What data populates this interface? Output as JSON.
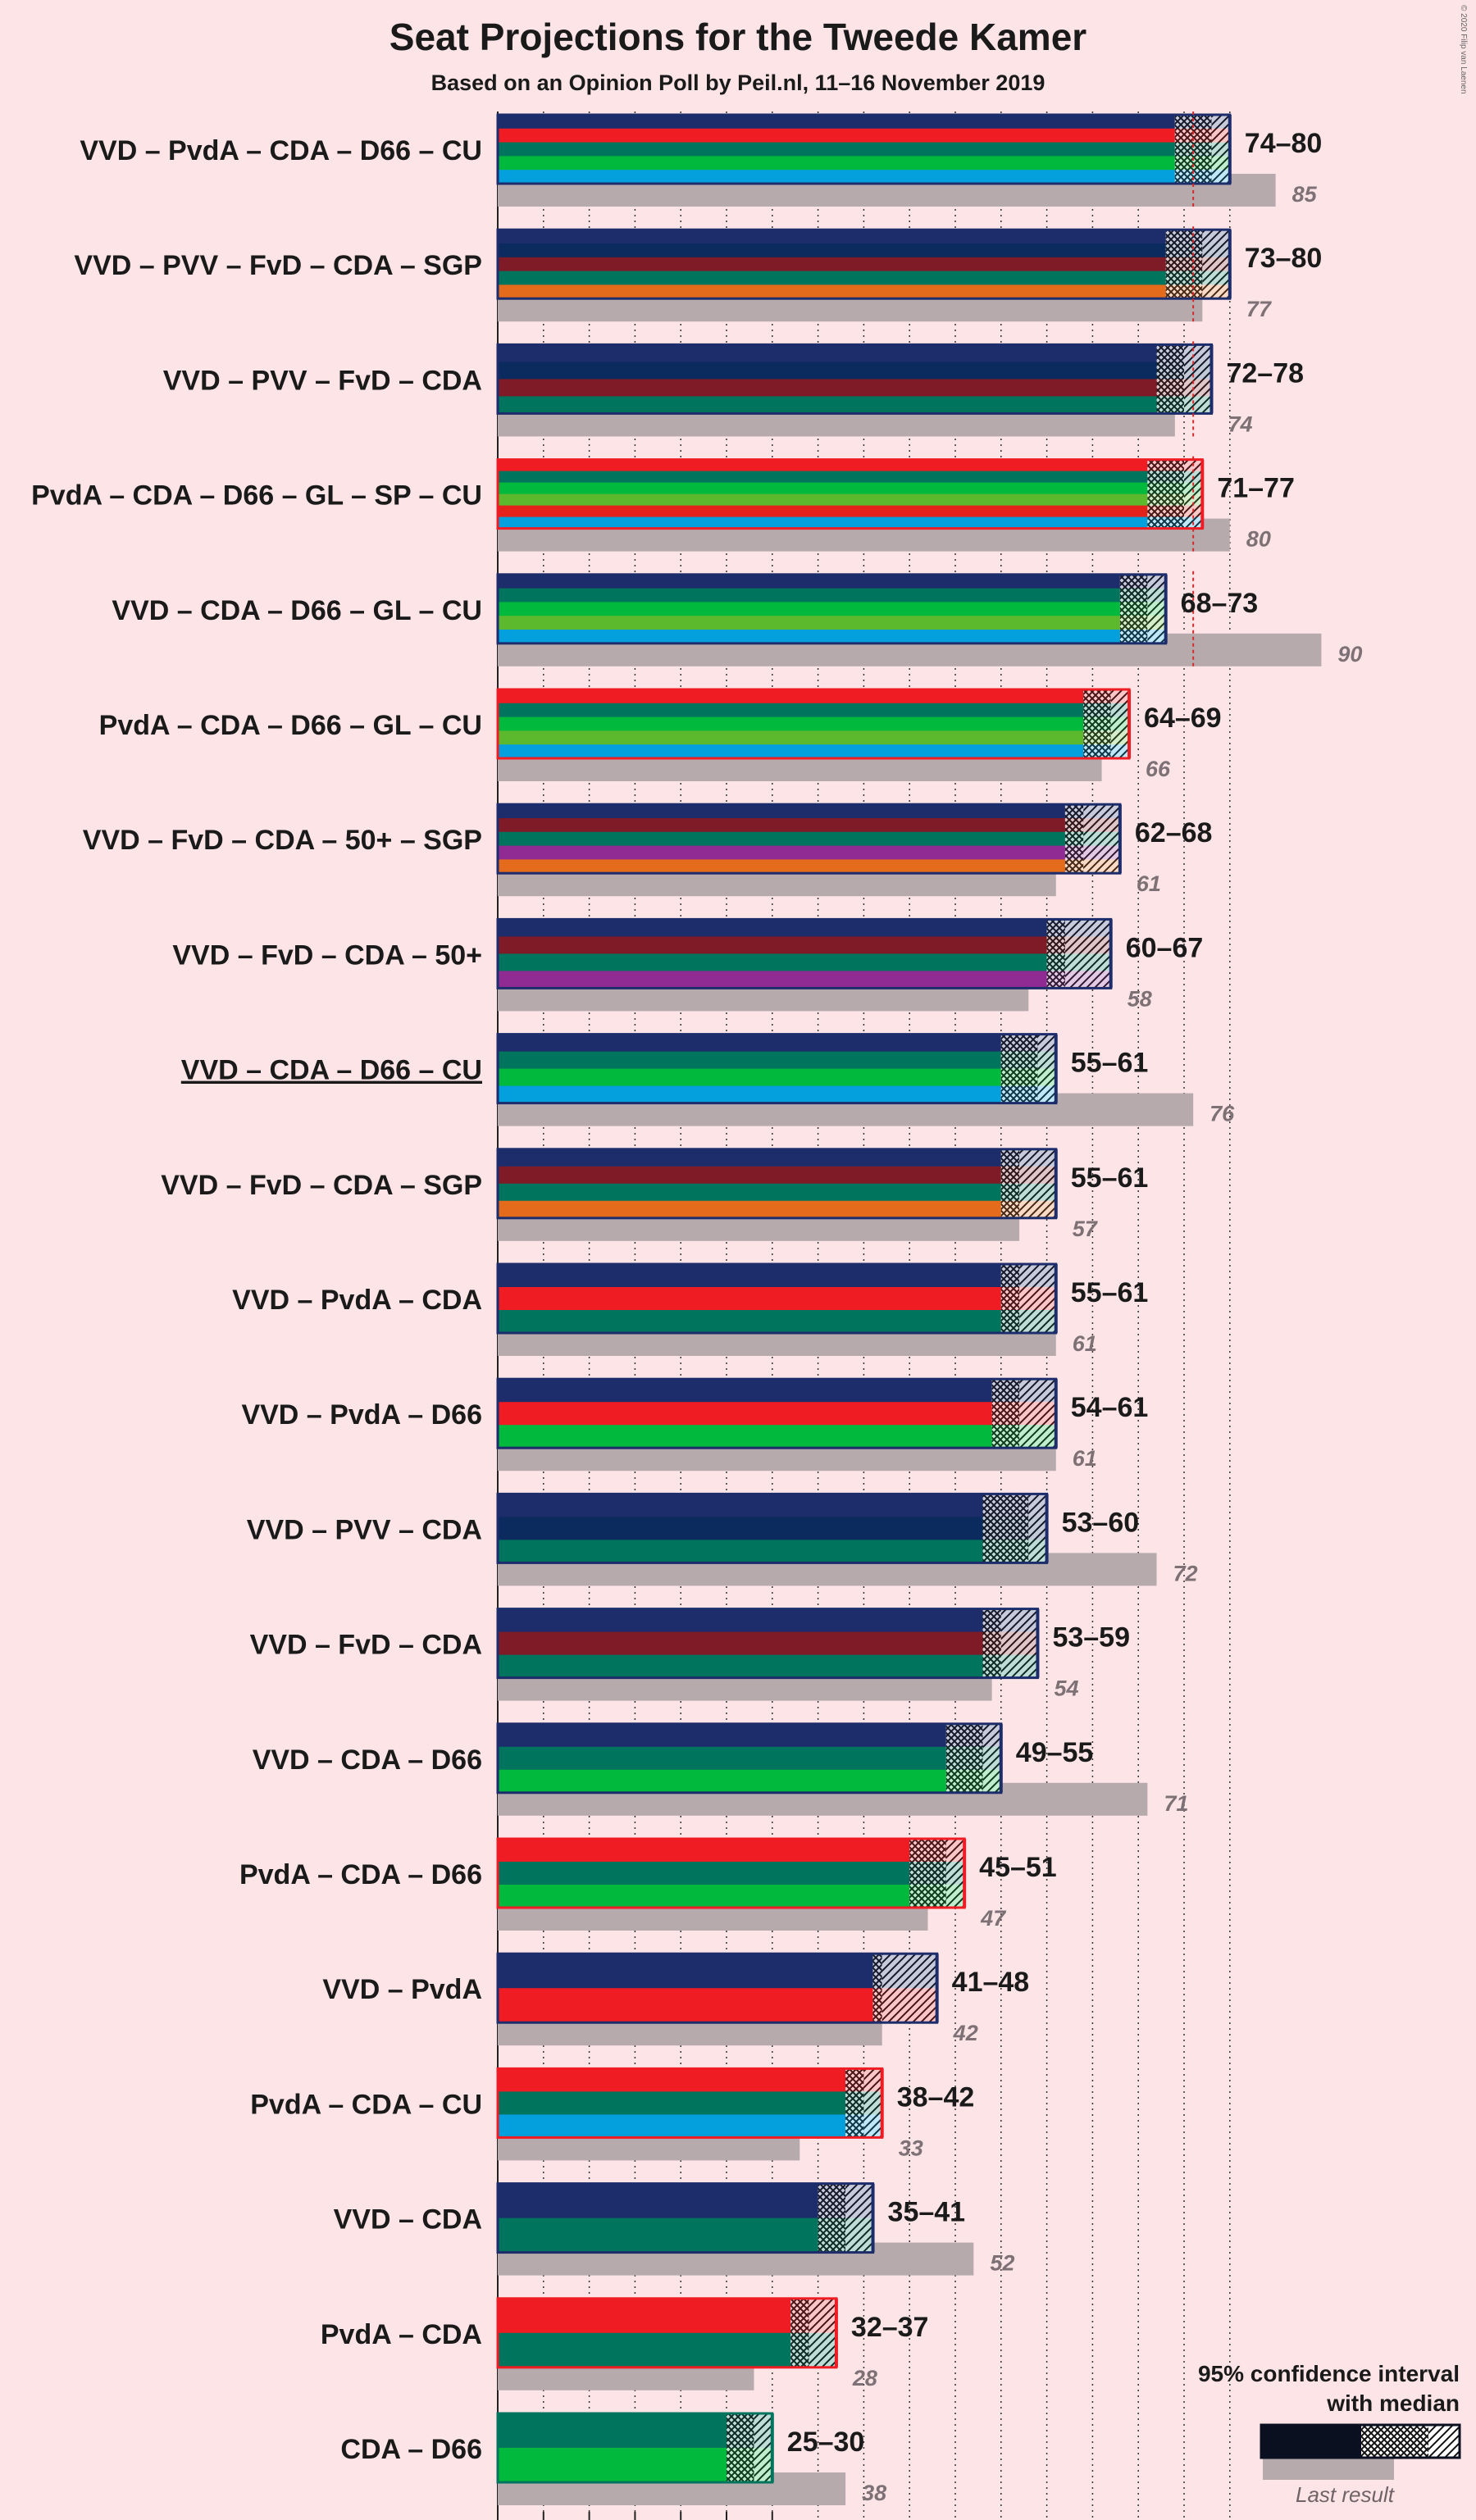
{
  "title": "Seat Projections for the Tweede Kamer",
  "subtitle": "Based on an Opinion Poll by Peil.nl, 11–16 November 2019",
  "copyright": "© 2020 Filip van Laenen",
  "legend": {
    "ci_label_line1": "95% confidence interval",
    "ci_label_line2": "with median",
    "last_result_label": "Last result"
  },
  "party_colors": {
    "VVD": "#1d2d6b",
    "PvdA": "#ef1c24",
    "CDA": "#00745c",
    "D66": "#00b93d",
    "CU": "#04a0de",
    "PVV": "#0b2b5e",
    "FvD": "#7e1b26",
    "SGP": "#e46b1b",
    "GL": "#5cb92e",
    "SP": "#e3231b",
    "50+": "#8f2b93"
  },
  "chart_data": {
    "type": "bar",
    "xlim": [
      0,
      90
    ],
    "majority": 76,
    "coalitions": [
      {
        "label": "VVD – PvdA – CDA – D66 – CU",
        "parties": [
          "VVD",
          "PvdA",
          "CDA",
          "D66",
          "CU"
        ],
        "low": 74,
        "median": 78,
        "high": 80,
        "range_label": "74–80",
        "last_result": 85,
        "last_label": "85",
        "underlined": false
      },
      {
        "label": "VVD – PVV – FvD – CDA – SGP",
        "parties": [
          "VVD",
          "PVV",
          "FvD",
          "CDA",
          "SGP"
        ],
        "low": 73,
        "median": 77,
        "high": 80,
        "range_label": "73–80",
        "last_result": 77,
        "last_label": "77",
        "underlined": false
      },
      {
        "label": "VVD – PVV – FvD – CDA",
        "parties": [
          "VVD",
          "PVV",
          "FvD",
          "CDA"
        ],
        "low": 72,
        "median": 75,
        "high": 78,
        "range_label": "72–78",
        "last_result": 74,
        "last_label": "74",
        "underlined": false
      },
      {
        "label": "PvdA – CDA – D66 – GL – SP – CU",
        "parties": [
          "PvdA",
          "CDA",
          "D66",
          "GL",
          "SP",
          "CU"
        ],
        "low": 71,
        "median": 75,
        "high": 77,
        "range_label": "71–77",
        "last_result": 80,
        "last_label": "80",
        "underlined": false
      },
      {
        "label": "VVD – CDA – D66 – GL – CU",
        "parties": [
          "VVD",
          "CDA",
          "D66",
          "GL",
          "CU"
        ],
        "low": 68,
        "median": 71,
        "high": 73,
        "range_label": "68–73",
        "last_result": 90,
        "last_label": "90",
        "underlined": false
      },
      {
        "label": "PvdA – CDA – D66 – GL – CU",
        "parties": [
          "PvdA",
          "CDA",
          "D66",
          "GL",
          "CU"
        ],
        "low": 64,
        "median": 67,
        "high": 69,
        "range_label": "64–69",
        "last_result": 66,
        "last_label": "66",
        "underlined": false
      },
      {
        "label": "VVD – FvD – CDA – 50+ – SGP",
        "parties": [
          "VVD",
          "FvD",
          "CDA",
          "50+",
          "SGP"
        ],
        "low": 62,
        "median": 64,
        "high": 68,
        "range_label": "62–68",
        "last_result": 61,
        "last_label": "61",
        "underlined": false
      },
      {
        "label": "VVD – FvD – CDA – 50+",
        "parties": [
          "VVD",
          "FvD",
          "CDA",
          "50+"
        ],
        "low": 60,
        "median": 62,
        "high": 67,
        "range_label": "60–67",
        "last_result": 58,
        "last_label": "58",
        "underlined": false
      },
      {
        "label": "VVD – CDA – D66 – CU",
        "parties": [
          "VVD",
          "CDA",
          "D66",
          "CU"
        ],
        "low": 55,
        "median": 59,
        "high": 61,
        "range_label": "55–61",
        "last_result": 76,
        "last_label": "76",
        "underlined": true
      },
      {
        "label": "VVD – FvD – CDA – SGP",
        "parties": [
          "VVD",
          "FvD",
          "CDA",
          "SGP"
        ],
        "low": 55,
        "median": 57,
        "high": 61,
        "range_label": "55–61",
        "last_result": 57,
        "last_label": "57",
        "underlined": false
      },
      {
        "label": "VVD – PvdA – CDA",
        "parties": [
          "VVD",
          "PvdA",
          "CDA"
        ],
        "low": 55,
        "median": 57,
        "high": 61,
        "range_label": "55–61",
        "last_result": 61,
        "last_label": "61",
        "underlined": false
      },
      {
        "label": "VVD – PvdA – D66",
        "parties": [
          "VVD",
          "PvdA",
          "D66"
        ],
        "low": 54,
        "median": 57,
        "high": 61,
        "range_label": "54–61",
        "last_result": 61,
        "last_label": "61",
        "underlined": false
      },
      {
        "label": "VVD – PVV – CDA",
        "parties": [
          "VVD",
          "PVV",
          "CDA"
        ],
        "low": 53,
        "median": 58,
        "high": 60,
        "range_label": "53–60",
        "last_result": 72,
        "last_label": "72",
        "underlined": false
      },
      {
        "label": "VVD – FvD – CDA",
        "parties": [
          "VVD",
          "FvD",
          "CDA"
        ],
        "low": 53,
        "median": 55,
        "high": 59,
        "range_label": "53–59",
        "last_result": 54,
        "last_label": "54",
        "underlined": false
      },
      {
        "label": "VVD – CDA – D66",
        "parties": [
          "VVD",
          "CDA",
          "D66"
        ],
        "low": 49,
        "median": 53,
        "high": 55,
        "range_label": "49–55",
        "last_result": 71,
        "last_label": "71",
        "underlined": false
      },
      {
        "label": "PvdA – CDA – D66",
        "parties": [
          "PvdA",
          "CDA",
          "D66"
        ],
        "low": 45,
        "median": 49,
        "high": 51,
        "range_label": "45–51",
        "last_result": 47,
        "last_label": "47",
        "underlined": false
      },
      {
        "label": "VVD – PvdA",
        "parties": [
          "VVD",
          "PvdA"
        ],
        "low": 41,
        "median": 42,
        "high": 48,
        "range_label": "41–48",
        "last_result": 42,
        "last_label": "42",
        "underlined": false
      },
      {
        "label": "PvdA – CDA – CU",
        "parties": [
          "PvdA",
          "CDA",
          "CU"
        ],
        "low": 38,
        "median": 40,
        "high": 42,
        "range_label": "38–42",
        "last_result": 33,
        "last_label": "33",
        "underlined": false
      },
      {
        "label": "VVD – CDA",
        "parties": [
          "VVD",
          "CDA"
        ],
        "low": 35,
        "median": 38,
        "high": 41,
        "range_label": "35–41",
        "last_result": 52,
        "last_label": "52",
        "underlined": false
      },
      {
        "label": "PvdA – CDA",
        "parties": [
          "PvdA",
          "CDA"
        ],
        "low": 32,
        "median": 34,
        "high": 37,
        "range_label": "32–37",
        "last_result": 28,
        "last_label": "28",
        "underlined": false
      },
      {
        "label": "CDA – D66",
        "parties": [
          "CDA",
          "D66"
        ],
        "low": 25,
        "median": 28,
        "high": 30,
        "range_label": "25–30",
        "last_result": 38,
        "last_label": "38",
        "underlined": false
      }
    ]
  }
}
